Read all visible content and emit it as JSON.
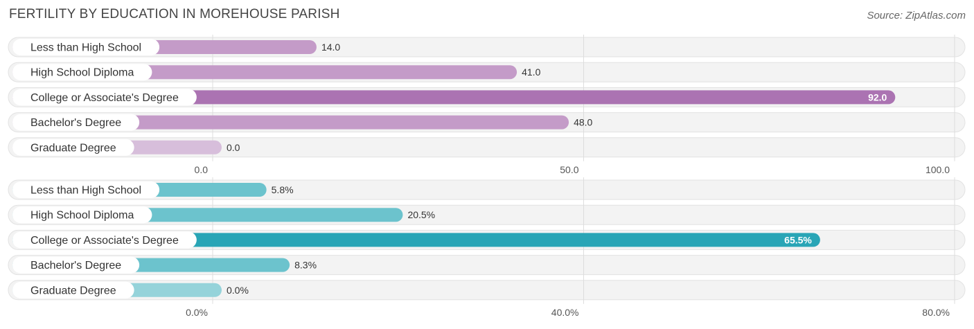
{
  "title": "FERTILITY BY EDUCATION IN MOREHOUSE PARISH",
  "source": "Source: ZipAtlas.com",
  "chart_data": [
    {
      "type": "bar",
      "orientation": "horizontal",
      "categories": [
        "Less than High School",
        "High School Diploma",
        "College or Associate's Degree",
        "Bachelor's Degree",
        "Graduate Degree"
      ],
      "values": [
        14.0,
        41.0,
        92.0,
        48.0,
        0.0
      ],
      "value_labels": [
        "14.0",
        "41.0",
        "92.0",
        "48.0",
        "0.0"
      ],
      "xlim": [
        0,
        100
      ],
      "ticks": [
        0,
        50,
        100
      ],
      "tick_labels": [
        "0.0",
        "50.0",
        "100.0"
      ],
      "highlight_index": 2,
      "colors": {
        "normal": "#c49bc8",
        "highlight": "#ab73b2",
        "zero": "#d7bedb"
      }
    },
    {
      "type": "bar",
      "orientation": "horizontal",
      "categories": [
        "Less than High School",
        "High School Diploma",
        "College or Associate's Degree",
        "Bachelor's Degree",
        "Graduate Degree"
      ],
      "values": [
        5.8,
        20.5,
        65.5,
        8.3,
        0.0
      ],
      "value_labels": [
        "5.8%",
        "20.5%",
        "65.5%",
        "8.3%",
        "0.0%"
      ],
      "xlim": [
        0,
        80
      ],
      "ticks": [
        0,
        40,
        80
      ],
      "tick_labels": [
        "0.0%",
        "40.0%",
        "80.0%"
      ],
      "highlight_index": 2,
      "colors": {
        "normal": "#6cc3cd",
        "highlight": "#29a5b6",
        "zero": "#95d3da"
      }
    }
  ]
}
